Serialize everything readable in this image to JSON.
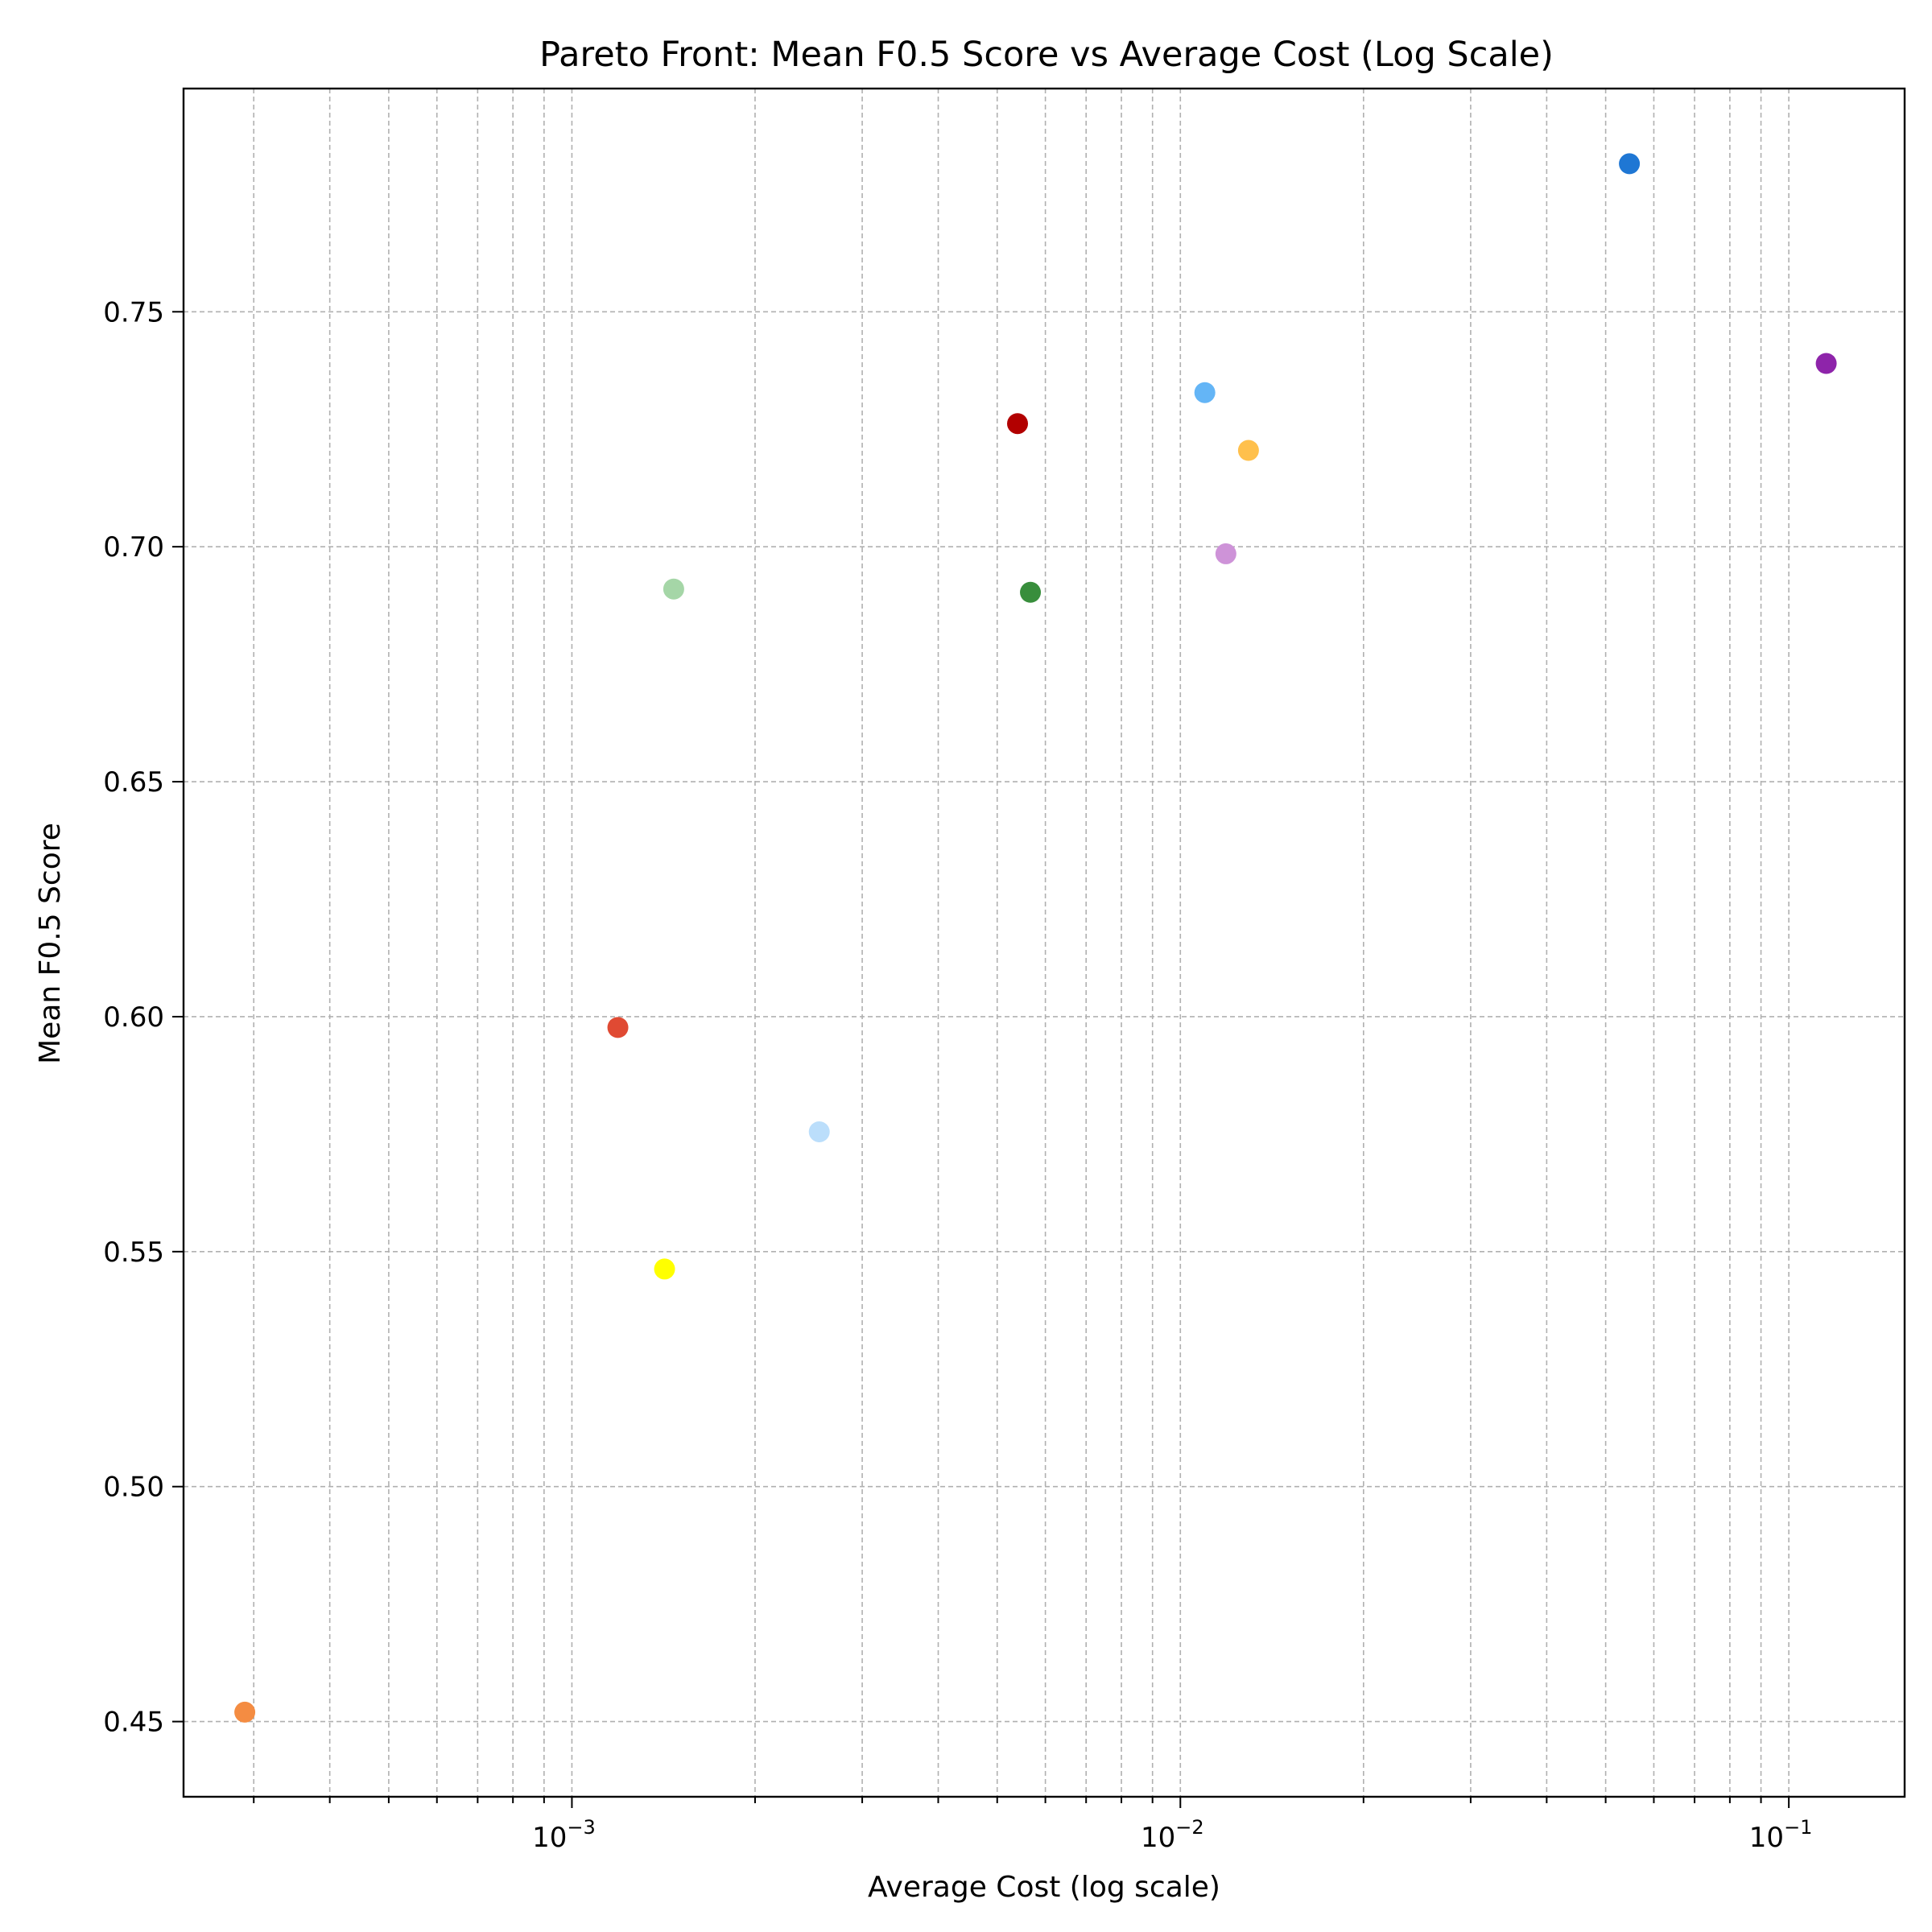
{
  "chart_data": {
    "type": "scatter",
    "title": "Pareto Front: Mean F0.5 Score vs Average Cost (Log Scale)",
    "xlabel": "Average Cost (log scale)",
    "ylabel": "Mean F0.5 Score",
    "xscale": "log",
    "xlim": [
      0.00023,
      0.155
    ],
    "ylim": [
      0.434,
      0.7975
    ],
    "grid": true,
    "legend": "none",
    "x_ticks": [
      {
        "value": 0.001,
        "base": "10",
        "exp": "−3"
      },
      {
        "value": 0.01,
        "base": "10",
        "exp": "−2"
      },
      {
        "value": 0.1,
        "base": "10",
        "exp": "−1"
      }
    ],
    "y_ticks": [
      {
        "value": 0.45,
        "label": "0.45"
      },
      {
        "value": 0.5,
        "label": "0.50"
      },
      {
        "value": 0.55,
        "label": "0.55"
      },
      {
        "value": 0.6,
        "label": "0.60"
      },
      {
        "value": 0.65,
        "label": "0.65"
      },
      {
        "value": 0.7,
        "label": "0.70"
      },
      {
        "value": 0.75,
        "label": "0.75"
      }
    ],
    "points": [
      {
        "x": 0.0547,
        "y": 0.7815,
        "color": "#1f77d4"
      },
      {
        "x": 0.1152,
        "y": 0.739,
        "color": "#8e24aa"
      },
      {
        "x": 0.01097,
        "y": 0.7328,
        "color": "#64b5f6"
      },
      {
        "x": 0.0054,
        "y": 0.7262,
        "color": "#b20000"
      },
      {
        "x": 0.01294,
        "y": 0.7205,
        "color": "#ffc04c"
      },
      {
        "x": 0.01188,
        "y": 0.6985,
        "color": "#ce93d8"
      },
      {
        "x": 0.00147,
        "y": 0.691,
        "color": "#a5d6a7"
      },
      {
        "x": 0.00567,
        "y": 0.6903,
        "color": "#388e3c"
      },
      {
        "x": 0.00119,
        "y": 0.5977,
        "color": "#e04a33"
      },
      {
        "x": 0.00255,
        "y": 0.5755,
        "color": "#bbdefb"
      },
      {
        "x": 0.00142,
        "y": 0.5463,
        "color": "#ffff00"
      },
      {
        "x": 0.00029,
        "y": 0.452,
        "color": "#f48c42"
      }
    ]
  }
}
